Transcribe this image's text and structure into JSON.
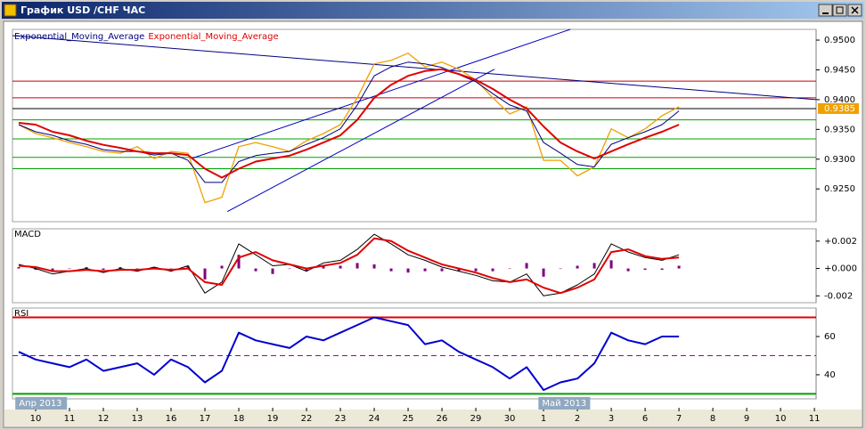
{
  "window": {
    "title": "График USD /CHF ЧАС"
  },
  "chart_data": [
    {
      "type": "line",
      "x": [
        -0.5,
        0,
        0.5,
        1,
        1.5,
        2,
        2.5,
        3,
        3.5,
        4,
        4.5,
        5,
        5.5,
        6,
        6.5,
        7,
        7.5,
        8,
        8.5,
        9,
        9.5,
        10,
        10.5,
        11,
        11.5,
        12,
        12.5,
        13,
        13.5,
        14,
        14.5,
        15,
        15.5,
        16,
        16.5,
        17,
        17.5,
        18,
        18.5,
        19,
        19.5
      ],
      "xlim": [
        -0.684,
        23.05
      ],
      "ylim": [
        0.9195,
        0.9518
      ],
      "yticks": [
        {
          "value": 0.95,
          "label": "0.9500"
        },
        {
          "value": 0.945,
          "label": "0.9450"
        },
        {
          "value": 0.94,
          "label": "0.9400"
        },
        {
          "value": 0.935,
          "label": "0.9350"
        },
        {
          "value": 0.93,
          "label": "0.9300"
        },
        {
          "value": 0.925,
          "label": "0.9250"
        }
      ],
      "series": [
        {
          "color": "#f0a000",
          "values": [
            0.9358,
            0.9343,
            0.9336,
            0.9328,
            0.9321,
            0.9313,
            0.931,
            0.9321,
            0.9301,
            0.9313,
            0.931,
            0.9227,
            0.9236,
            0.9321,
            0.9328,
            0.9321,
            0.9313,
            0.9331,
            0.9343,
            0.9358,
            0.9403,
            0.946,
            0.9466,
            0.9478,
            0.9455,
            0.9463,
            0.9451,
            0.9433,
            0.9403,
            0.9376,
            0.9388,
            0.9298,
            0.9298,
            0.9272,
            0.9287,
            0.9351,
            0.9336,
            0.9351,
            0.9373,
            0.9388,
            null
          ]
        },
        {
          "name": "Exponential_Moving_Average",
          "color": "#000080",
          "values": [
            0.9358,
            0.9346,
            0.934,
            0.9331,
            0.9325,
            0.9316,
            0.9313,
            0.9313,
            0.9307,
            0.931,
            0.9298,
            0.9261,
            0.9261,
            0.9296,
            0.9306,
            0.931,
            0.9313,
            0.9325,
            0.9336,
            0.9351,
            0.9391,
            0.944,
            0.9455,
            0.9463,
            0.946,
            0.9454,
            0.9442,
            0.943,
            0.941,
            0.9391,
            0.9381,
            0.9328,
            0.931,
            0.9291,
            0.9287,
            0.9325,
            0.9336,
            0.9346,
            0.9358,
            0.9381,
            null
          ]
        },
        {
          "name": "Exponential_Moving_Average",
          "color": "#e00000",
          "values": [
            0.9361,
            0.9358,
            0.9346,
            0.934,
            0.9331,
            0.9324,
            0.9319,
            0.9313,
            0.931,
            0.931,
            0.9307,
            0.9284,
            0.9269,
            0.9284,
            0.9296,
            0.9301,
            0.9306,
            0.9316,
            0.9328,
            0.934,
            0.9366,
            0.9403,
            0.9425,
            0.944,
            0.9448,
            0.9451,
            0.9443,
            0.9433,
            0.9418,
            0.94,
            0.9385,
            0.9355,
            0.9328,
            0.9313,
            0.9301,
            0.9313,
            0.9325,
            0.9336,
            0.9346,
            0.9358,
            null
          ]
        }
      ],
      "hlines": [
        {
          "value": 0.9431,
          "color": "#c00000"
        },
        {
          "value": 0.9403,
          "color": "#c00000"
        },
        {
          "value": 0.9366,
          "color": "#00a000"
        },
        {
          "value": 0.9334,
          "color": "#00a000"
        },
        {
          "value": 0.9303,
          "color": "#00a000"
        },
        {
          "value": 0.9284,
          "color": "#00a000"
        }
      ],
      "trendlines": [
        {
          "color": "#000080",
          "x": [
            -0.684,
            23.05
          ],
          "values": [
            0.95075,
            0.94
          ]
        },
        {
          "color": "#0000c0",
          "x": [
            4.6,
            15.79
          ],
          "values": [
            0.9301,
            0.9518
          ]
        },
        {
          "color": "#0000c0",
          "x": [
            5.66,
            13.55
          ],
          "values": [
            0.9212,
            0.9451
          ]
        }
      ],
      "last_price": 0.9385,
      "last_price_color": "#f0a000"
    },
    {
      "type": "line",
      "title": "MACD",
      "x": [
        -0.5,
        0,
        0.5,
        1,
        1.5,
        2,
        2.5,
        3,
        3.5,
        4,
        4.5,
        5,
        5.5,
        6,
        6.5,
        7,
        7.5,
        8,
        8.5,
        9,
        9.5,
        10,
        10.5,
        11,
        11.5,
        12,
        12.5,
        13,
        13.5,
        14,
        14.5,
        15,
        15.5,
        16,
        16.5,
        17,
        17.5,
        18,
        18.5,
        19,
        19.5
      ],
      "xlim": [
        -0.684,
        23.05
      ],
      "ylim": [
        -0.0025,
        0.0029
      ],
      "yticks": [
        {
          "value": 0.002,
          "label": "+0.002"
        },
        {
          "value": 0,
          "label": "+0.000"
        },
        {
          "value": -0.002,
          "label": "-0.002"
        }
      ],
      "series": [
        {
          "type": "bar",
          "color": "#800080",
          "values": [
            0.0001,
            -0.0001,
            -0.0002,
            0,
            0.0001,
            -0.0001,
            0.0001,
            -0.0001,
            0.0001,
            -0.0001,
            0.0002,
            -0.0008,
            0.0002,
            0.001,
            -0.0002,
            -0.0004,
            0,
            -0.0002,
            0.0002,
            0.0002,
            0.0004,
            0.0003,
            -0.0002,
            -0.0003,
            -0.0002,
            -0.0002,
            -0.0002,
            -0.0002,
            -0.0002,
            0,
            0.0004,
            -0.0006,
            0,
            0.0002,
            0.0004,
            0.0006,
            -0.0002,
            -0.0001,
            -0.0001,
            0.0002,
            null
          ]
        },
        {
          "color": "#000000",
          "values": [
            0.0003,
            0,
            -0.0004,
            -0.0002,
            0,
            -0.0003,
            0,
            -0.0002,
            0.0001,
            -0.0002,
            0.0002,
            -0.0018,
            -0.001,
            0.0018,
            0.001,
            0.0002,
            0.0003,
            -0.0002,
            0.0004,
            0.0006,
            0.0014,
            0.0025,
            0.0018,
            0.001,
            0.0006,
            0.0001,
            -0.0002,
            -0.0005,
            -0.0009,
            -0.001,
            -0.0004,
            -0.002,
            -0.0018,
            -0.0012,
            -0.0004,
            0.0018,
            0.0012,
            0.0008,
            0.0006,
            0.001,
            null
          ]
        },
        {
          "color": "#e00000",
          "values": [
            0.0002,
            0.0001,
            -0.0002,
            -0.0002,
            -0.0001,
            -0.0002,
            -0.0001,
            -0.0001,
            0,
            -0.0001,
            0,
            -0.001,
            -0.0012,
            0.0008,
            0.0012,
            0.0006,
            0.0003,
            0,
            0.0002,
            0.0004,
            0.001,
            0.0022,
            0.002,
            0.0013,
            0.0008,
            0.0003,
            0,
            -0.0003,
            -0.0007,
            -0.001,
            -0.0008,
            -0.0014,
            -0.0018,
            -0.0014,
            -0.0008,
            0.0012,
            0.0014,
            0.0009,
            0.0007,
            0.0008,
            null
          ]
        }
      ]
    },
    {
      "type": "line",
      "title": "RSI",
      "x": [
        -0.5,
        0,
        0.5,
        1,
        1.5,
        2,
        2.5,
        3,
        3.5,
        4,
        4.5,
        5,
        5.5,
        6,
        6.5,
        7,
        7.5,
        8,
        8.5,
        9,
        9.5,
        10,
        10.5,
        11,
        11.5,
        12,
        12.5,
        13,
        13.5,
        14,
        14.5,
        15,
        15.5,
        16,
        16.5,
        17,
        17.5,
        18,
        18.5,
        19,
        19.5
      ],
      "xlim": [
        -0.684,
        23.05
      ],
      "ylim": [
        27.4,
        74.9
      ],
      "yticks": [
        60,
        40
      ],
      "series": [
        {
          "color": "#0000d0",
          "values": [
            52,
            48,
            46,
            44,
            48,
            42,
            44,
            46,
            40,
            48,
            44,
            36,
            42,
            62,
            58,
            56,
            54,
            60,
            58,
            62,
            66,
            70,
            68,
            66,
            56,
            58,
            52,
            48,
            44,
            38,
            44,
            32,
            36,
            38,
            46,
            62,
            58,
            56,
            60,
            60,
            null
          ]
        }
      ],
      "hlines": [
        {
          "value": 70,
          "color": "#e00000"
        },
        {
          "value": 50,
          "color": "#a000a0",
          "dashed": true
        },
        {
          "value": 30,
          "color": "#00a000"
        }
      ],
      "xticks": [
        {
          "value": 0,
          "label": "10"
        },
        {
          "value": 1,
          "label": "11"
        },
        {
          "value": 2,
          "label": "12"
        },
        {
          "value": 3,
          "label": "13"
        },
        {
          "value": 4,
          "label": "16"
        },
        {
          "value": 5,
          "label": "17"
        },
        {
          "value": 6,
          "label": "18"
        },
        {
          "value": 7,
          "label": "19"
        },
        {
          "value": 8,
          "label": "22"
        },
        {
          "value": 9,
          "label": "23"
        },
        {
          "value": 10,
          "label": "24"
        },
        {
          "value": 11,
          "label": "25"
        },
        {
          "value": 12,
          "label": "26"
        },
        {
          "value": 13,
          "label": "29"
        },
        {
          "value": 14,
          "label": "30"
        },
        {
          "value": 15,
          "label": "1"
        },
        {
          "value": 16,
          "label": "2"
        },
        {
          "value": 17,
          "label": "3"
        },
        {
          "value": 18,
          "label": "6"
        },
        {
          "value": 19,
          "label": "7"
        },
        {
          "value": 20,
          "label": "8"
        },
        {
          "value": 21,
          "label": "9"
        },
        {
          "value": 22,
          "label": "10"
        },
        {
          "value": 23,
          "label": "11"
        }
      ],
      "annotations": [
        {
          "x": -0.6,
          "text": "Апр 2013"
        },
        {
          "x": 14.85,
          "text": "Май 2013"
        }
      ]
    }
  ]
}
